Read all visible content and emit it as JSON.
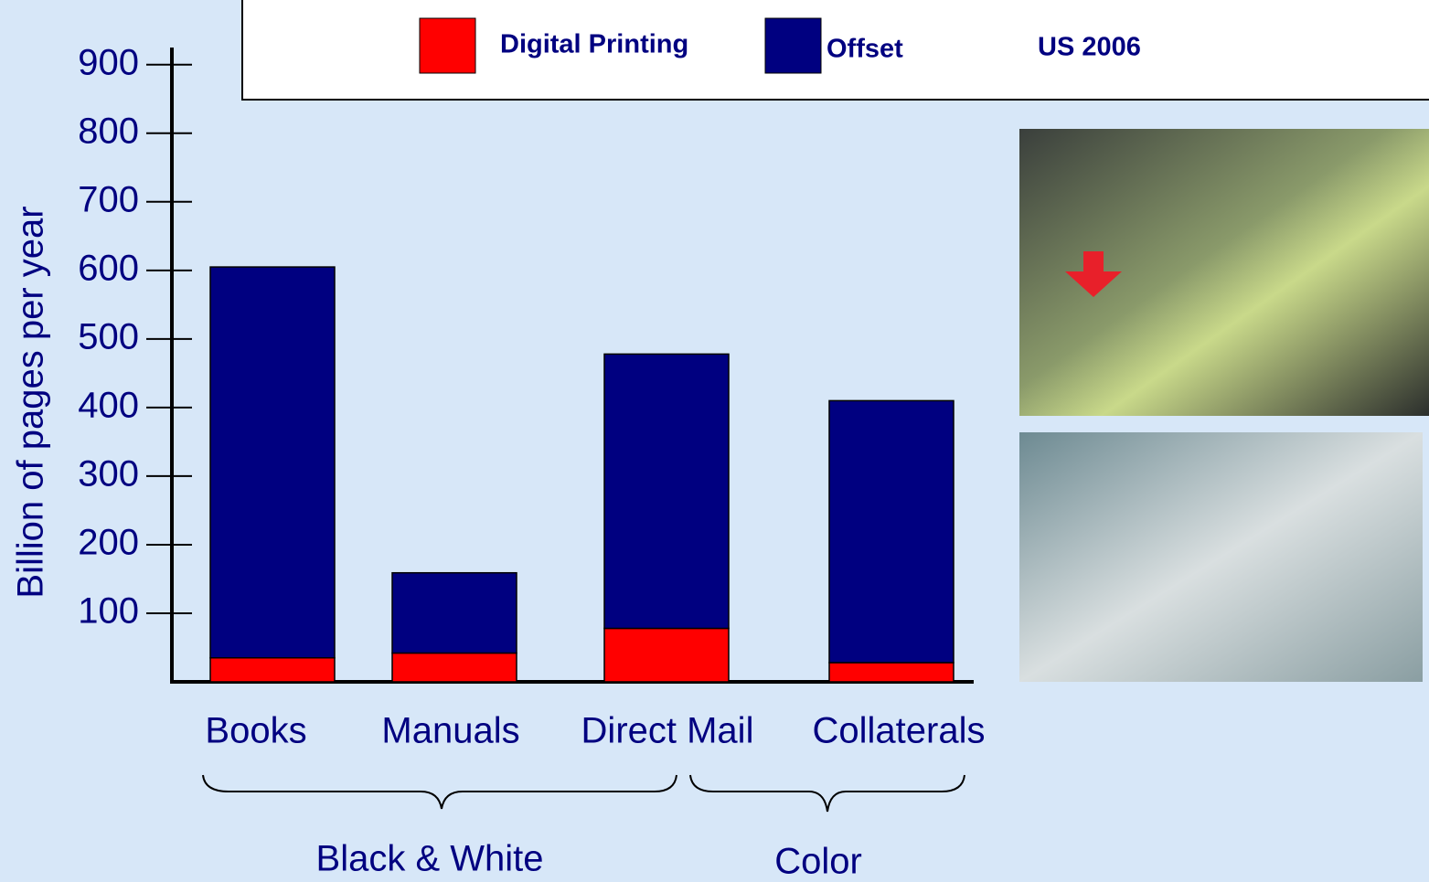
{
  "chart_data": {
    "type": "stacked-bar",
    "subtitle": "US 2006",
    "ylabel": "Billion of pages per year",
    "categories": [
      "Books",
      "Manuals",
      "Direct Mail",
      "Collaterals"
    ],
    "series": [
      {
        "name": "Digital Printing",
        "color": "#ff0000",
        "values": [
          35,
          42,
          78,
          28
        ]
      },
      {
        "name": "Offset",
        "color": "#000080",
        "values": [
          570,
          117,
          400,
          382
        ]
      }
    ],
    "groups": [
      "Black & White",
      "Color"
    ],
    "ylim": [
      0,
      925
    ],
    "yticks": [
      100,
      200,
      300,
      400,
      500,
      600,
      700,
      800,
      900
    ]
  }
}
